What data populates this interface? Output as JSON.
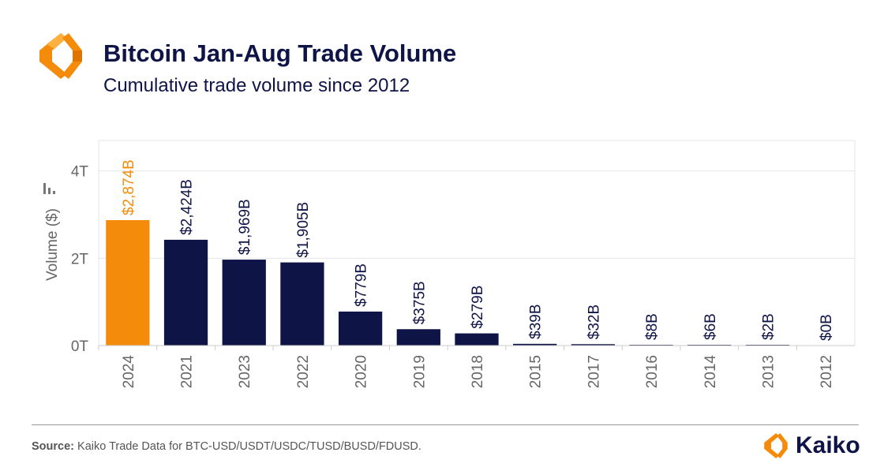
{
  "header": {
    "title": "Bitcoin Jan-Aug Trade Volume",
    "subtitle": "Cumulative trade volume since 2012",
    "logo_icon": "kaiko-logo-icon"
  },
  "colors": {
    "highlight": "#f58b0a",
    "bar": "#0f1447",
    "text": "#0f1447",
    "axis_text": "#666666",
    "grid": "#e6e6e6"
  },
  "chart_data": {
    "type": "bar",
    "title": "Bitcoin Jan-Aug Trade Volume",
    "subtitle": "Cumulative trade volume since 2012",
    "ylabel": "Volume ($)",
    "xlabel": "",
    "ylim": [
      0,
      4700
    ],
    "y_unit": "billions USD",
    "yticks": [
      {
        "value": 0,
        "label": "0T"
      },
      {
        "value": 2000,
        "label": "2T"
      },
      {
        "value": 4000,
        "label": "4T"
      }
    ],
    "grid": true,
    "categories": [
      "2024",
      "2021",
      "2023",
      "2022",
      "2020",
      "2019",
      "2018",
      "2015",
      "2017",
      "2016",
      "2014",
      "2013",
      "2012"
    ],
    "values": [
      2874,
      2424,
      1969,
      1905,
      779,
      375,
      279,
      39,
      32,
      8,
      6,
      2,
      0
    ],
    "labels": [
      "$2,874B",
      "$2,424B",
      "$1,969B",
      "$1,905B",
      "$779B",
      "$375B",
      "$279B",
      "$39B",
      "$32B",
      "$8B",
      "$6B",
      "$2B",
      "$0B"
    ],
    "highlight_category": "2024"
  },
  "footer": {
    "source_label": "Source:",
    "source_text": " Kaiko Trade Data for BTC-USD/USDT/USDC/TUSD/BUSD/FDUSD.",
    "brand": "Kaiko"
  }
}
